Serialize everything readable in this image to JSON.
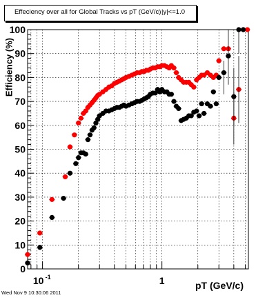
{
  "title": "Effeciency over all for Global Tracks vs pT (GeV/c)",
  "title_overlap": "|y|<=1.0",
  "timestamp": "Wed Nov  9 10:30:06 2011",
  "colors": {
    "series_red": "#ff0000",
    "series_black": "#000000",
    "frame": "#000000"
  },
  "chart_data": {
    "type": "scatter",
    "xlabel": "pT (GeV/c)",
    "ylabel": "Efficiency (%)",
    "xscale": "log",
    "xlim": [
      0.075,
      5.3
    ],
    "ylim": [
      0,
      100
    ],
    "grid": true,
    "legend": "none",
    "xticks": [
      {
        "value": 0.1,
        "base": "10",
        "exp": "-1"
      },
      {
        "value": 1,
        "base": "1",
        "exp": ""
      }
    ],
    "yticks": [
      0,
      10,
      20,
      30,
      40,
      50,
      60,
      70,
      80,
      90,
      100
    ],
    "series": [
      {
        "color": "#ff0000",
        "x": [
          0.075,
          0.095,
          0.12,
          0.155,
          0.17,
          0.185,
          0.2,
          0.21,
          0.22,
          0.23,
          0.24,
          0.25,
          0.26,
          0.27,
          0.28,
          0.29,
          0.3,
          0.32,
          0.34,
          0.36,
          0.38,
          0.4,
          0.42,
          0.44,
          0.46,
          0.48,
          0.5,
          0.53,
          0.56,
          0.59,
          0.62,
          0.65,
          0.68,
          0.71,
          0.74,
          0.77,
          0.8,
          0.84,
          0.88,
          0.92,
          0.96,
          1.0,
          1.05,
          1.1,
          1.15,
          1.2,
          1.26,
          1.32,
          1.38,
          1.45,
          1.52,
          1.6,
          1.68,
          1.76,
          1.85,
          1.95,
          2.05,
          2.15,
          2.25,
          2.4,
          2.55,
          2.7,
          2.85,
          3.0,
          3.3,
          3.6,
          4.0,
          4.4,
          4.8,
          5.2
        ],
        "y": [
          6,
          15,
          29,
          38.5,
          51,
          56,
          61,
          63,
          65,
          66,
          67.5,
          68.5,
          69.5,
          70.5,
          71.5,
          72.5,
          73,
          74,
          75,
          76,
          76.5,
          77.5,
          78,
          78.5,
          79,
          79.5,
          80,
          80.5,
          81,
          81.5,
          82,
          82,
          82.5,
          82.5,
          83,
          83,
          83.5,
          84,
          84,
          84.5,
          84.5,
          85,
          85,
          84.5,
          84,
          85,
          84,
          82,
          80,
          79,
          78,
          78,
          78,
          77,
          76,
          79,
          80,
          81,
          81,
          82,
          81,
          80,
          81,
          87,
          92,
          92,
          63,
          75,
          100,
          100
        ]
      },
      {
        "color": "#000000",
        "x": [
          0.075,
          0.095,
          0.12,
          0.15,
          0.17,
          0.19,
          0.2,
          0.21,
          0.22,
          0.23,
          0.24,
          0.25,
          0.26,
          0.27,
          0.28,
          0.29,
          0.3,
          0.32,
          0.34,
          0.36,
          0.38,
          0.4,
          0.42,
          0.44,
          0.46,
          0.48,
          0.5,
          0.53,
          0.56,
          0.59,
          0.62,
          0.65,
          0.68,
          0.71,
          0.74,
          0.77,
          0.8,
          0.84,
          0.88,
          0.92,
          0.96,
          1.0,
          1.05,
          1.1,
          1.15,
          1.2,
          1.26,
          1.32,
          1.38,
          1.45,
          1.52,
          1.6,
          1.68,
          1.76,
          1.85,
          1.95,
          2.05,
          2.15,
          2.25,
          2.4,
          2.55,
          2.7,
          2.85,
          3.0,
          3.3,
          3.6,
          4.0,
          4.4,
          4.8
        ],
        "y": [
          2.5,
          9,
          21.5,
          29.5,
          40,
          44,
          46.5,
          48.5,
          48.5,
          48,
          54,
          56,
          58,
          59,
          61,
          62.5,
          64,
          65,
          66,
          66,
          66.5,
          67,
          67.5,
          67.5,
          68,
          68.5,
          68,
          68.5,
          69,
          69.5,
          70,
          70,
          70.5,
          71,
          71.5,
          72,
          73,
          73.5,
          73.5,
          75,
          74,
          75,
          74,
          74,
          73,
          73,
          70,
          68,
          67,
          62,
          62.5,
          63,
          64,
          64,
          65.5,
          66,
          64,
          69,
          65,
          69,
          68,
          74,
          69,
          80,
          82,
          89,
          72,
          100,
          100
        ]
      }
    ]
  }
}
